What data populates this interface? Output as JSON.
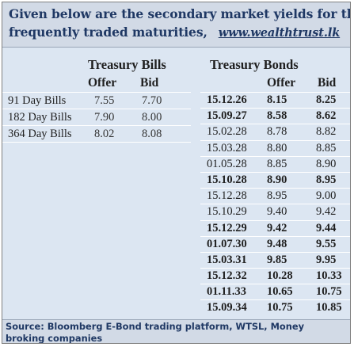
{
  "header": {
    "line1": "Given below are the secondary market yields for the most",
    "line2": "frequently traded maturities,",
    "link": "www.wealthtrust.lk"
  },
  "treasury_bills": {
    "title": "Treasury Bills",
    "offer_label": "Offer",
    "bid_label": "Bid",
    "rows": [
      {
        "tenor": "91 Day Bills",
        "offer": "7.55",
        "bid": "7.70"
      },
      {
        "tenor": "182 Day Bills",
        "offer": "7.90",
        "bid": "8.00"
      },
      {
        "tenor": "364 Day Bills",
        "offer": "8.02",
        "bid": "8.08"
      }
    ]
  },
  "treasury_bonds": {
    "title": "Treasury Bonds",
    "offer_label": "Offer",
    "bid_label": "Bid",
    "rows": [
      {
        "maturity": "15.12.26",
        "offer": "8.15",
        "bid": "8.25",
        "bold": true
      },
      {
        "maturity": "15.09.27",
        "offer": "8.58",
        "bid": "8.62",
        "bold": true
      },
      {
        "maturity": "15.02.28",
        "offer": "8.78",
        "bid": "8.82",
        "bold": false
      },
      {
        "maturity": "15.03.28",
        "offer": "8.80",
        "bid": "8.85",
        "bold": false
      },
      {
        "maturity": "01.05.28",
        "offer": "8.85",
        "bid": "8.90",
        "bold": false
      },
      {
        "maturity": "15.10.28",
        "offer": "8.90",
        "bid": "8.95",
        "bold": true
      },
      {
        "maturity": "15.12.28",
        "offer": "8.95",
        "bid": "9.00",
        "bold": false
      },
      {
        "maturity": "15.10.29",
        "offer": "9.40",
        "bid": "9.42",
        "bold": false
      },
      {
        "maturity": "15.12.29",
        "offer": "9.42",
        "bid": "9.44",
        "bold": true
      },
      {
        "maturity": "01.07.30",
        "offer": "9.48",
        "bid": "9.55",
        "bold": true
      },
      {
        "maturity": "15.03.31",
        "offer": "9.85",
        "bid": "9.95",
        "bold": true
      },
      {
        "maturity": "15.12.32",
        "offer": "10.28",
        "bid": "10.33",
        "bold": true
      },
      {
        "maturity": "01.11.33",
        "offer": "10.65",
        "bid": "10.75",
        "bold": true
      },
      {
        "maturity": "15.09.34",
        "offer": "10.75",
        "bid": "10.85",
        "bold": true
      }
    ]
  },
  "footer": {
    "source": "Source: Bloomberg E-Bond trading platform, WTSL, Money broking companies"
  },
  "colors": {
    "header_bg": "#d2dae6",
    "body_bg": "#dce6f2",
    "title_text": "#1f3864"
  }
}
